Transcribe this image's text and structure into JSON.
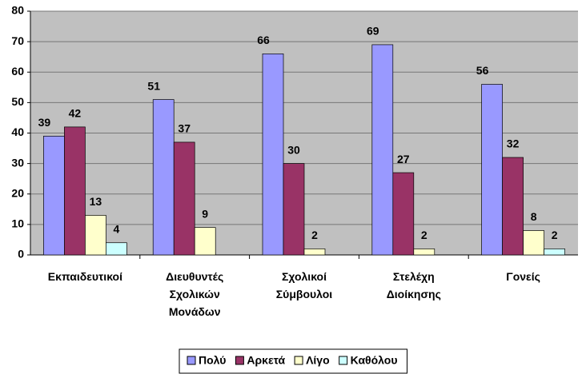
{
  "chart_data": {
    "type": "bar",
    "categories": [
      "Εκπαιδευτικοί",
      "Διευθυντές Σχολικών Μονάδων",
      "Σχολικοί Σύμβουλοι",
      "Στελέχη Διοίκησης",
      "Γονείς"
    ],
    "series": [
      {
        "name": "Πολύ",
        "color": "#9999ff",
        "values": [
          39,
          51,
          66,
          69,
          56
        ]
      },
      {
        "name": "Αρκετά",
        "color": "#993366",
        "values": [
          42,
          37,
          30,
          27,
          32
        ]
      },
      {
        "name": "Λίγο",
        "color": "#ffffcc",
        "values": [
          13,
          9,
          2,
          2,
          8
        ]
      },
      {
        "name": "Καθόλου",
        "color": "#ccffff",
        "values": [
          4,
          null,
          null,
          null,
          2
        ]
      }
    ],
    "ylim": [
      0,
      80
    ],
    "yticks": [
      0,
      10,
      20,
      30,
      40,
      50,
      60,
      70,
      80
    ],
    "grid": true,
    "legend": "bottom"
  }
}
